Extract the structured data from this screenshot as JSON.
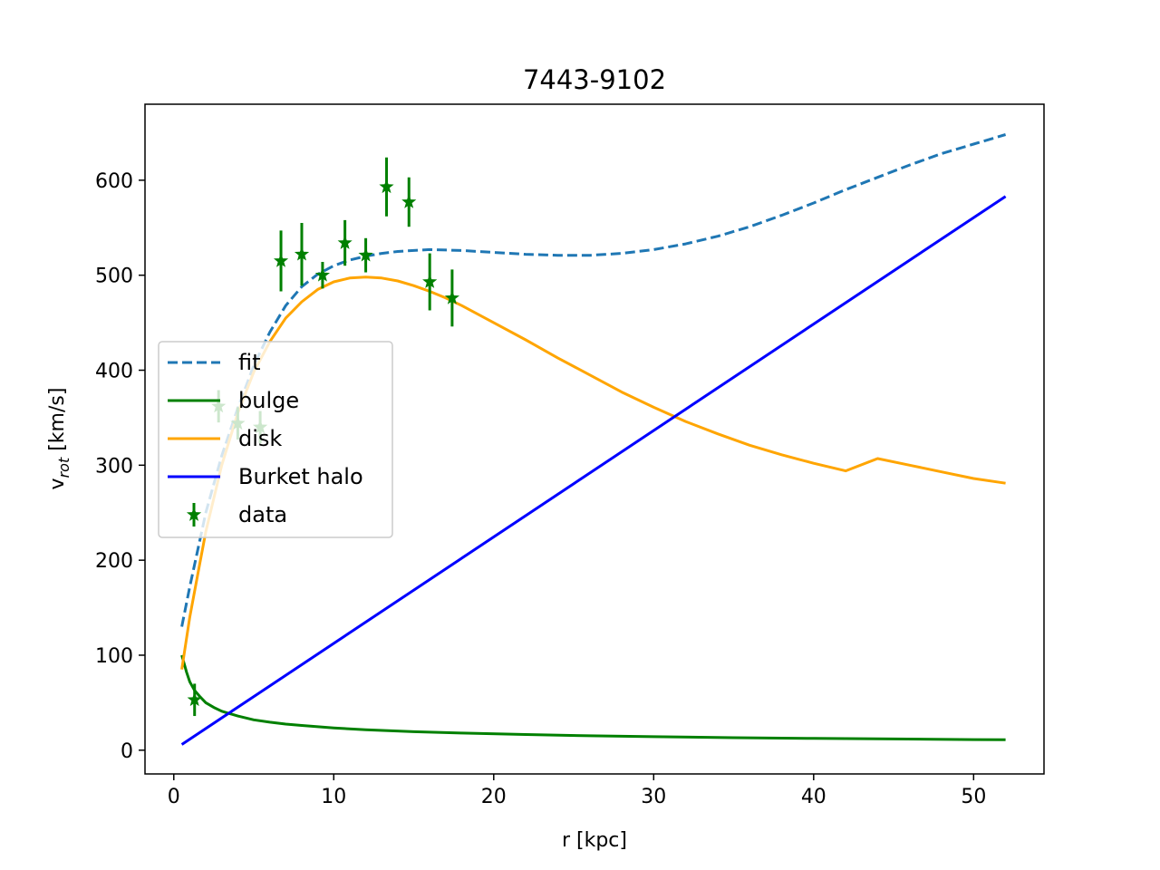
{
  "chart_data": {
    "type": "line",
    "title": "7443-9102",
    "xlabel": "r [kpc]",
    "ylabel": {
      "main": "v",
      "sub": "rot",
      "unit": " [km/s]"
    },
    "xlim": [
      -1.8,
      54.4
    ],
    "ylim": [
      -25,
      680
    ],
    "xticks": [
      0,
      10,
      20,
      30,
      40,
      50
    ],
    "yticks": [
      0,
      100,
      200,
      300,
      400,
      500,
      600
    ],
    "grid": false,
    "legend_position": "center-left",
    "series": [
      {
        "name": "fit",
        "style": "dashed",
        "color": "#1f77b4",
        "x": [
          0.5,
          1.0,
          2.0,
          3.0,
          4.0,
          5.0,
          6.0,
          7.0,
          8.0,
          9.0,
          10.0,
          11.0,
          12.0,
          13.0,
          14.0,
          15.0,
          16.0,
          18.0,
          20.0,
          22.0,
          24.0,
          26.0,
          28.0,
          30.0,
          32.0,
          34.0,
          36.0,
          38.0,
          40.0,
          42.0,
          44.0,
          46.0,
          48.0,
          50.0,
          52.0
        ],
        "y": [
          130,
          172,
          250,
          310,
          360,
          405,
          440,
          468,
          488,
          501,
          510,
          516,
          520,
          523,
          525,
          526,
          527,
          526,
          524,
          522,
          521,
          521,
          523,
          527,
          533,
          541,
          551,
          563,
          576,
          590,
          603,
          616,
          628,
          638,
          648
        ]
      },
      {
        "name": "bulge",
        "style": "solid",
        "color": "#008000",
        "x": [
          0.5,
          0.8,
          1.0,
          1.3,
          1.6,
          2.0,
          2.5,
          3.0,
          4.0,
          5.0,
          6.0,
          7.0,
          8.0,
          10.0,
          12.0,
          15.0,
          18.0,
          22.0,
          26.0,
          30.0,
          35.0,
          40.0,
          45.0,
          50.0,
          52.0
        ],
        "y": [
          100,
          82,
          72,
          63,
          57,
          50,
          45,
          41,
          36,
          32,
          29.5,
          27.5,
          26,
          23.5,
          21.5,
          19.5,
          18,
          16.5,
          15.2,
          14.2,
          13.2,
          12.4,
          11.8,
          11.2,
          11
        ]
      },
      {
        "name": "disk",
        "style": "solid",
        "color": "#ffa500",
        "x": [
          0.5,
          1.0,
          1.5,
          2.0,
          3.0,
          4.0,
          5.0,
          6.0,
          7.0,
          8.0,
          9.0,
          10.0,
          11.0,
          12.0,
          13.0,
          14.0,
          15.0,
          16.0,
          17.0,
          18.0,
          20.0,
          22.0,
          24.0,
          26.0,
          28.0,
          30.0,
          32.0,
          34.0,
          36.0,
          38.0,
          40.0,
          42.0,
          44.0,
          46.0,
          48.0,
          50.0,
          52.0
        ],
        "y": [
          85,
          140,
          185,
          230,
          300,
          355,
          398,
          430,
          455,
          472,
          485,
          493,
          497,
          498,
          497,
          494,
          489,
          483,
          476,
          468,
          450,
          432,
          413,
          395,
          377,
          361,
          346,
          333,
          321,
          311,
          302,
          294,
          307,
          300,
          293,
          286,
          281
        ]
      },
      {
        "name": "Burket halo",
        "style": "solid",
        "color": "#0000ff",
        "x": [
          0.5,
          52.0
        ],
        "y": [
          6,
          583
        ]
      }
    ],
    "data_points": {
      "name": "data",
      "color": "#008000",
      "marker": "star",
      "points": [
        {
          "x": 1.3,
          "y": 53,
          "err": 17
        },
        {
          "x": 2.8,
          "y": 362,
          "err": 17
        },
        {
          "x": 4.0,
          "y": 344,
          "err": 17
        },
        {
          "x": 5.4,
          "y": 340,
          "err": 17
        },
        {
          "x": 6.7,
          "y": 515,
          "err": 32
        },
        {
          "x": 8.0,
          "y": 522,
          "err": 33
        },
        {
          "x": 9.3,
          "y": 500,
          "err": 14
        },
        {
          "x": 10.7,
          "y": 534,
          "err": 24
        },
        {
          "x": 12.0,
          "y": 521,
          "err": 18
        },
        {
          "x": 13.3,
          "y": 593,
          "err": 31
        },
        {
          "x": 14.7,
          "y": 577,
          "err": 26
        },
        {
          "x": 16.0,
          "y": 493,
          "err": 30
        },
        {
          "x": 17.4,
          "y": 476,
          "err": 30
        }
      ]
    }
  }
}
